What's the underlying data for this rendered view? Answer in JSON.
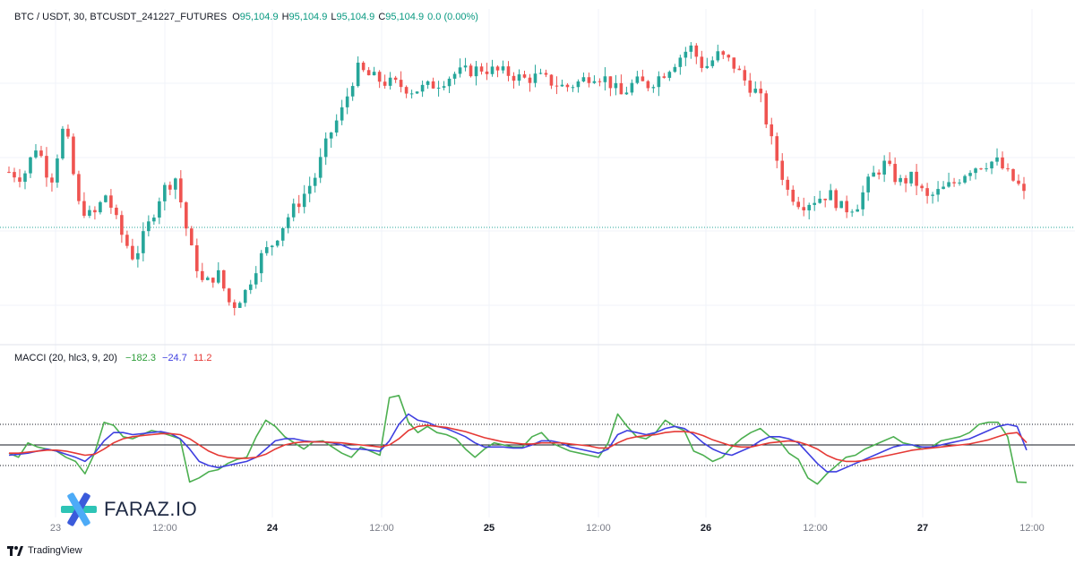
{
  "header": {
    "symbol": "BTC / USDT, 30, BTCUSDT_241227_FUTURES",
    "o_label": "O",
    "o_value": "95,104.9",
    "h_label": "H",
    "h_value": "95,104.9",
    "l_label": "L",
    "l_value": "95,104.9",
    "c_label": "C",
    "c_value": "95,104.9",
    "change": "0.0 (0.00%)"
  },
  "indicator": {
    "name": "MACCI (20, hlc3, 9, 20)",
    "v1": "−182.3",
    "v2": "−24.7",
    "v3": "11.2"
  },
  "colors": {
    "up": "#26a69a",
    "down": "#ef5350",
    "cci": "#4caf50",
    "macd": "#3f3fe0",
    "signal": "#e53935"
  },
  "x_ticks": [
    {
      "label": "23",
      "major": false
    },
    {
      "label": "12:00",
      "major": false
    },
    {
      "label": "24",
      "major": true
    },
    {
      "label": "12:00",
      "major": false
    },
    {
      "label": "25",
      "major": true
    },
    {
      "label": "12:00",
      "major": false
    },
    {
      "label": "26",
      "major": true
    },
    {
      "label": "12:00",
      "major": false
    },
    {
      "label": "27",
      "major": true
    },
    {
      "label": "12:00",
      "major": false
    }
  ],
  "branding": {
    "logo_text": "FARAZ.IO",
    "footer": "TradingView"
  },
  "chart_data": [
    {
      "type": "candlestick",
      "title": "BTC / USDT, 30, BTCUSDT_241227_FUTURES",
      "last_price": 95104.9,
      "path": [
        0.62,
        0.6,
        0.72,
        0.58,
        0.8,
        0.5,
        0.45,
        0.54,
        0.4,
        0.3,
        0.42,
        0.55,
        0.6,
        0.35,
        0.2,
        0.25,
        0.12,
        0.18,
        0.3,
        0.36,
        0.45,
        0.52,
        0.6,
        0.75,
        0.85,
        1.0,
        0.97,
        0.95,
        0.94,
        0.92,
        0.93,
        0.95,
        0.98,
        0.99,
        1.0,
        0.99,
        0.98,
        0.96,
        0.97,
        0.95,
        0.93,
        0.95,
        0.98,
        0.96,
        0.9,
        0.95,
        0.94,
        0.98,
        1.03,
        1.08,
        1.0,
        1.05,
        1.02,
        0.95,
        0.9,
        0.7,
        0.55,
        0.5,
        0.52,
        0.54,
        0.48,
        0.5,
        0.6,
        0.65,
        0.58,
        0.6,
        0.52,
        0.55,
        0.58,
        0.63,
        0.65,
        0.66,
        0.6,
        0.55
      ]
    },
    {
      "type": "line",
      "title": "MACCI (20, hlc3, 9, 20)",
      "series": [
        {
          "name": "",
          "values": [
            -40,
            -60,
            10,
            -10,
            -20,
            -30,
            -60,
            -80,
            -140,
            -40,
            110,
            95,
            40,
            30,
            50,
            70,
            60,
            45,
            30,
            -180,
            -160,
            -130,
            -120,
            -90,
            -70,
            -60,
            40,
            120,
            90,
            40,
            10,
            -20,
            15,
            20,
            -10,
            -40,
            -60,
            -10,
            -30,
            -50,
            230,
            240,
            110,
            60,
            90,
            60,
            50,
            30,
            -20,
            -60,
            -20,
            10,
            0,
            -10,
            -10,
            40,
            60,
            10,
            -10,
            -30,
            -40,
            -50,
            -60,
            10,
            150,
            90,
            40,
            30,
            60,
            120,
            90,
            70,
            -30,
            -50,
            -80,
            -60,
            -10,
            30,
            60,
            80,
            40,
            20,
            -40,
            -70,
            -160,
            -190,
            -140,
            -100,
            -60,
            -50,
            -20,
            0,
            20,
            40,
            10,
            0,
            -20,
            -10,
            20,
            30,
            40,
            60,
            100,
            110,
            110,
            40,
            -180,
            -182
          ]
        },
        {
          "name": "",
          "values": [
            -50,
            -45,
            -40,
            -30,
            -20,
            -30,
            -45,
            -60,
            -80,
            -40,
            20,
            60,
            60,
            50,
            55,
            60,
            65,
            55,
            30,
            -20,
            -80,
            -100,
            -110,
            -100,
            -90,
            -80,
            -60,
            -20,
            20,
            30,
            30,
            20,
            15,
            15,
            10,
            0,
            -20,
            -20,
            -25,
            -30,
            20,
            100,
            150,
            120,
            110,
            90,
            80,
            60,
            40,
            10,
            -10,
            -10,
            -10,
            -15,
            -15,
            0,
            20,
            20,
            10,
            -10,
            -20,
            -30,
            -40,
            -20,
            50,
            70,
            60,
            50,
            60,
            80,
            90,
            80,
            50,
            10,
            -20,
            -40,
            -50,
            -30,
            -10,
            20,
            40,
            40,
            30,
            10,
            -40,
            -90,
            -130,
            -130,
            -110,
            -90,
            -70,
            -50,
            -30,
            -10,
            0,
            0,
            -10,
            -10,
            0,
            10,
            20,
            30,
            50,
            70,
            90,
            100,
            90,
            -25
          ]
        },
        {
          "name": "",
          "values": [
            -40,
            -40,
            -35,
            -30,
            -25,
            -25,
            -30,
            -40,
            -50,
            -45,
            -20,
            10,
            30,
            40,
            45,
            50,
            55,
            55,
            50,
            30,
            0,
            -30,
            -50,
            -60,
            -65,
            -65,
            -60,
            -45,
            -20,
            0,
            10,
            15,
            15,
            15,
            12,
            10,
            5,
            0,
            -5,
            -10,
            0,
            30,
            70,
            90,
            95,
            90,
            85,
            75,
            65,
            50,
            35,
            25,
            15,
            10,
            5,
            5,
            10,
            10,
            10,
            5,
            0,
            -5,
            -15,
            -15,
            10,
            30,
            40,
            45,
            50,
            60,
            65,
            65,
            60,
            45,
            25,
            10,
            -5,
            -10,
            -10,
            0,
            10,
            15,
            20,
            15,
            0,
            -20,
            -50,
            -70,
            -80,
            -80,
            -75,
            -65,
            -55,
            -45,
            -35,
            -25,
            -20,
            -15,
            -10,
            -5,
            0,
            5,
            15,
            25,
            40,
            55,
            60,
            11
          ]
        }
      ]
    }
  ]
}
